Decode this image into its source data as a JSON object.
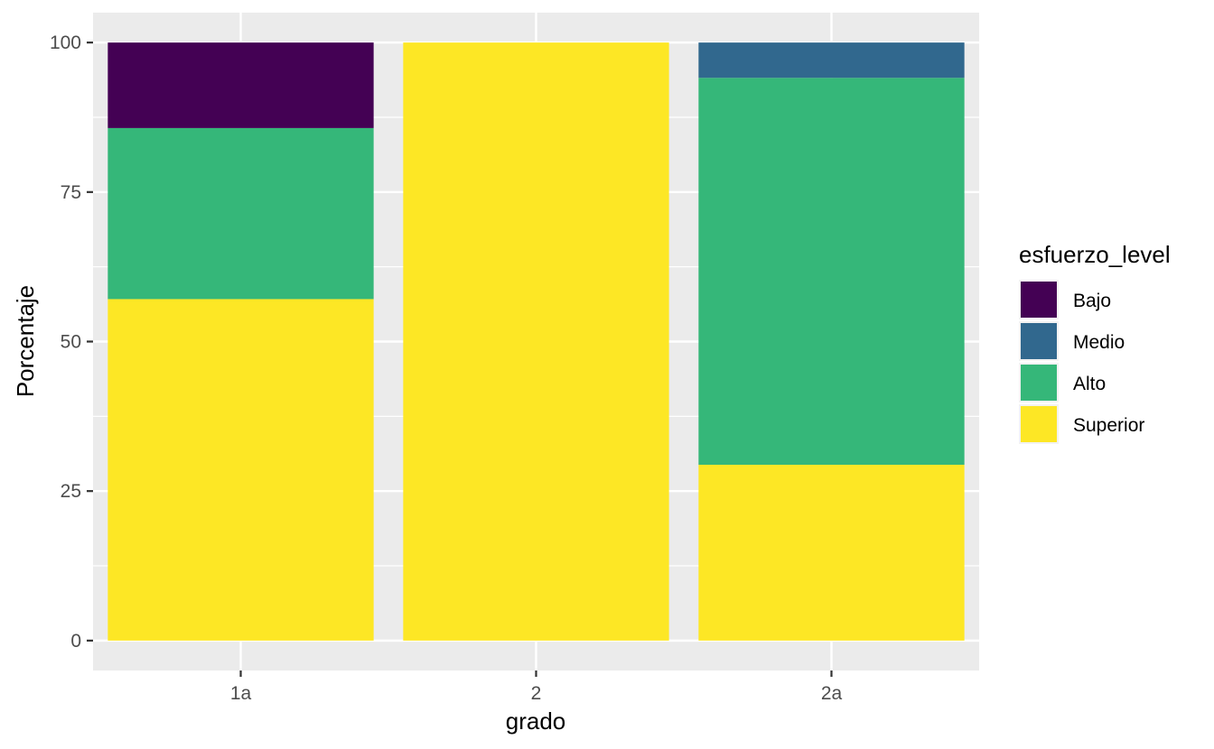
{
  "chart_data": {
    "type": "bar",
    "stacked": true,
    "categories": [
      "1a",
      "2",
      "2a"
    ],
    "series": [
      {
        "name": "Bajo",
        "color": "#440154",
        "values": [
          14.3,
          0,
          0
        ]
      },
      {
        "name": "Medio",
        "color": "#31688E",
        "values": [
          0,
          0,
          5.9
        ]
      },
      {
        "name": "Alto",
        "color": "#35B779",
        "values": [
          28.6,
          0,
          64.7
        ]
      },
      {
        "name": "Superior",
        "color": "#FDE725",
        "values": [
          57.1,
          100,
          29.4
        ]
      }
    ],
    "xlabel": "grado",
    "ylabel": "Porcentaje",
    "ylim": [
      -5,
      105
    ],
    "yticks": [
      0,
      25,
      50,
      75,
      100
    ],
    "ytick_labels": [
      "0",
      "25",
      "50",
      "75",
      "100"
    ],
    "legend": {
      "title": "esfuerzo_level",
      "position": "right"
    },
    "grid": true,
    "panel_background": "#EBEBEB",
    "grid_color": "#FFFFFF"
  }
}
